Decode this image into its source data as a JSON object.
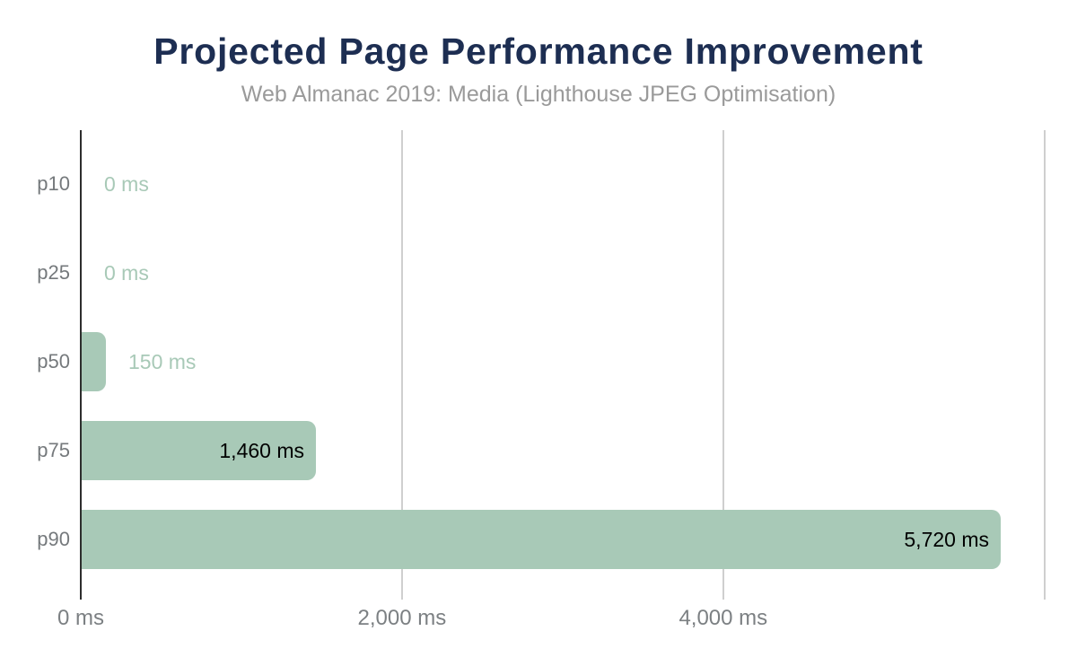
{
  "chart_data": {
    "type": "bar",
    "orientation": "horizontal",
    "title": "Projected Page Performance Improvement",
    "subtitle": "Web Almanac 2019: Media (Lighthouse JPEG Optimisation)",
    "categories": [
      "p10",
      "p25",
      "p50",
      "p75",
      "p90"
    ],
    "values": [
      0,
      0,
      150,
      1460,
      5720
    ],
    "value_labels": [
      "0 ms",
      "0 ms",
      "150 ms",
      "1,460 ms",
      "5,720 ms"
    ],
    "unit": "ms",
    "xlabel": "",
    "ylabel": "",
    "xlim": [
      0,
      6200
    ],
    "x_ticks": [
      {
        "value": 0,
        "label": "0 ms"
      },
      {
        "value": 2000,
        "label": "2,000 ms"
      },
      {
        "value": 4000,
        "label": "4,000 ms"
      },
      {
        "value": 6000,
        "label": ""
      }
    ],
    "grid": true,
    "legend": "none",
    "colors": {
      "background": "#ffffff",
      "bar": "#a8c9b7",
      "value_label_inside": "#000000",
      "value_label_outside": "#a8c9b7",
      "axis_line": "#2d2d2d",
      "gridline": "#cfcfcf",
      "category_label": "#75797c",
      "tick_label": "#7c8083",
      "title": "#1d2e52",
      "subtitle": "#9a9a9a"
    }
  }
}
